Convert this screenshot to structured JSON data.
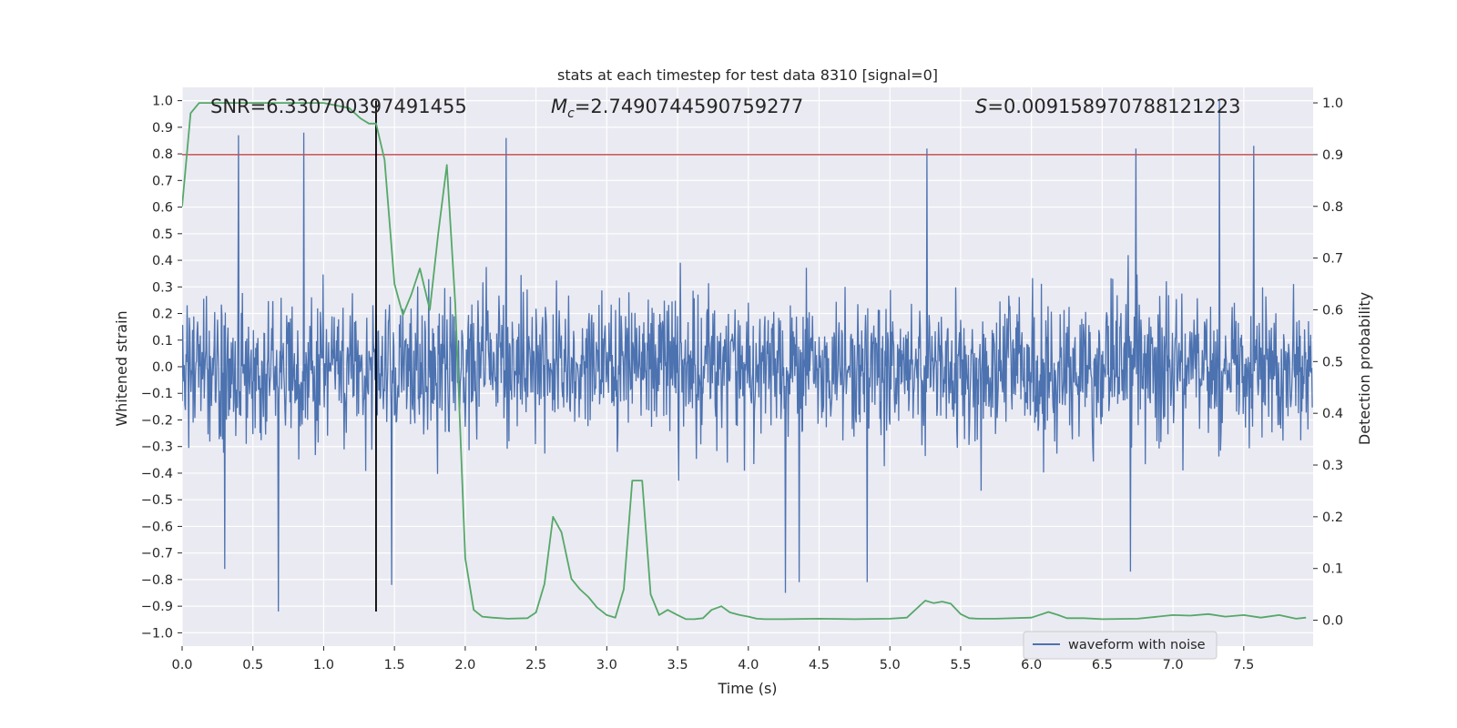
{
  "chart_data": {
    "type": "line",
    "title": "stats at each timestep for test data 8310 [signal=0]",
    "xlabel": "Time (s)",
    "ylabel": "Whitened strain",
    "ylabel_right": "Detection probability",
    "xlim": [
      0.0,
      7.99
    ],
    "ylim": [
      -1.05,
      1.05
    ],
    "ylim_right": [
      -0.05,
      1.03
    ],
    "xticks": [
      0.0,
      0.5,
      1.0,
      1.5,
      2.0,
      2.5,
      3.0,
      3.5,
      4.0,
      4.5,
      5.0,
      5.5,
      6.0,
      6.5,
      7.0,
      7.5
    ],
    "xtick_labels": [
      "0.0",
      "0.5",
      "1.0",
      "1.5",
      "2.0",
      "2.5",
      "3.0",
      "3.5",
      "4.0",
      "4.5",
      "5.0",
      "5.5",
      "6.0",
      "6.5",
      "7.0",
      "7.5"
    ],
    "yticks": [
      -1.0,
      -0.9,
      -0.8,
      -0.7,
      -0.6,
      -0.5,
      -0.4,
      -0.3,
      -0.2,
      -0.1,
      0.0,
      0.1,
      0.2,
      0.3,
      0.4,
      0.5,
      0.6,
      0.7,
      0.8,
      0.9,
      1.0
    ],
    "ytick_labels": [
      "−1.0",
      "−0.9",
      "−0.8",
      "−0.7",
      "−0.6",
      "−0.5",
      "−0.4",
      "−0.3",
      "−0.2",
      "−0.1",
      "0.0",
      "0.1",
      "0.2",
      "0.3",
      "0.4",
      "0.5",
      "0.6",
      "0.7",
      "0.8",
      "0.9",
      "1.0"
    ],
    "yticks_right": [
      0.0,
      0.1,
      0.2,
      0.3,
      0.4,
      0.5,
      0.6,
      0.7,
      0.8,
      0.9,
      1.0
    ],
    "ytick_labels_right": [
      "0.0",
      "0.1",
      "0.2",
      "0.3",
      "0.4",
      "0.5",
      "0.6",
      "0.7",
      "0.8",
      "0.9",
      "1.0"
    ],
    "annotations": {
      "snr": "SNR=6.330700397491455",
      "mc_symbol": "M",
      "mc_sub": "c",
      "mc_value": "=2.7490744590759277",
      "s_symbol": "S",
      "s_value": "=0.009158970788121223"
    },
    "legend": {
      "entries": [
        "waveform with noise"
      ],
      "location": "lower right"
    },
    "threshold_line": {
      "axis": "right",
      "value": 0.9,
      "color": "#c44e52"
    },
    "vertical_marker": {
      "x": 1.37,
      "y_range": [
        -0.92,
        1.0
      ],
      "color": "#000000"
    },
    "series": [
      {
        "name": "waveform with noise",
        "axis": "left",
        "color": "#4c72b0",
        "sample_rate_hz": 256,
        "envelope": {
          "typical_max": 0.4,
          "typical_min": -0.34,
          "extreme_max": 1.0,
          "extreme_min": -0.92
        },
        "peaks": [
          {
            "x": 0.4,
            "y": 0.87
          },
          {
            "x": 0.86,
            "y": 0.88
          },
          {
            "x": 2.29,
            "y": 0.86
          },
          {
            "x": 5.26,
            "y": 0.82
          },
          {
            "x": 6.74,
            "y": 0.82
          },
          {
            "x": 7.33,
            "y": 1.0
          },
          {
            "x": 7.57,
            "y": 0.83
          },
          {
            "x": 0.68,
            "y": -0.92
          },
          {
            "x": 1.48,
            "y": -0.82
          },
          {
            "x": 4.26,
            "y": -0.85
          },
          {
            "x": 4.36,
            "y": -0.81
          },
          {
            "x": 4.84,
            "y": -0.81
          },
          {
            "x": 0.3,
            "y": -0.76
          },
          {
            "x": 6.7,
            "y": -0.77
          }
        ]
      },
      {
        "name": "detection probability",
        "axis": "right",
        "color": "#55a868",
        "x": [
          0.0,
          0.06,
          0.12,
          0.25,
          0.5,
          0.75,
          1.0,
          1.18,
          1.26,
          1.32,
          1.37,
          1.43,
          1.5,
          1.56,
          1.62,
          1.68,
          1.75,
          1.81,
          1.87,
          1.93,
          2.0,
          2.06,
          2.12,
          2.19,
          2.3,
          2.44,
          2.5,
          2.56,
          2.62,
          2.68,
          2.75,
          2.81,
          2.87,
          2.93,
          3.0,
          3.06,
          3.12,
          3.18,
          3.25,
          3.31,
          3.37,
          3.43,
          3.5,
          3.56,
          3.62,
          3.68,
          3.74,
          3.81,
          3.87,
          3.94,
          4.0,
          4.06,
          4.12,
          4.25,
          4.5,
          4.75,
          5.0,
          5.12,
          5.25,
          5.31,
          5.37,
          5.43,
          5.5,
          5.56,
          5.62,
          5.75,
          6.0,
          6.12,
          6.19,
          6.25,
          6.31,
          6.37,
          6.5,
          6.75,
          7.0,
          7.12,
          7.25,
          7.37,
          7.5,
          7.62,
          7.75,
          7.87,
          7.94
        ],
        "values": [
          0.8,
          0.98,
          1.0,
          1.0,
          1.0,
          1.0,
          1.0,
          0.99,
          0.97,
          0.96,
          0.96,
          0.89,
          0.65,
          0.59,
          0.63,
          0.68,
          0.6,
          0.75,
          0.88,
          0.61,
          0.12,
          0.02,
          0.007,
          0.005,
          0.003,
          0.004,
          0.015,
          0.07,
          0.2,
          0.17,
          0.08,
          0.06,
          0.045,
          0.025,
          0.01,
          0.005,
          0.06,
          0.27,
          0.27,
          0.05,
          0.01,
          0.02,
          0.01,
          0.002,
          0.002,
          0.004,
          0.02,
          0.027,
          0.015,
          0.01,
          0.007,
          0.003,
          0.002,
          0.002,
          0.003,
          0.002,
          0.003,
          0.005,
          0.038,
          0.033,
          0.036,
          0.032,
          0.012,
          0.004,
          0.003,
          0.003,
          0.005,
          0.016,
          0.01,
          0.004,
          0.004,
          0.004,
          0.002,
          0.003,
          0.01,
          0.009,
          0.012,
          0.007,
          0.01,
          0.005,
          0.01,
          0.003,
          0.005
        ]
      }
    ]
  }
}
